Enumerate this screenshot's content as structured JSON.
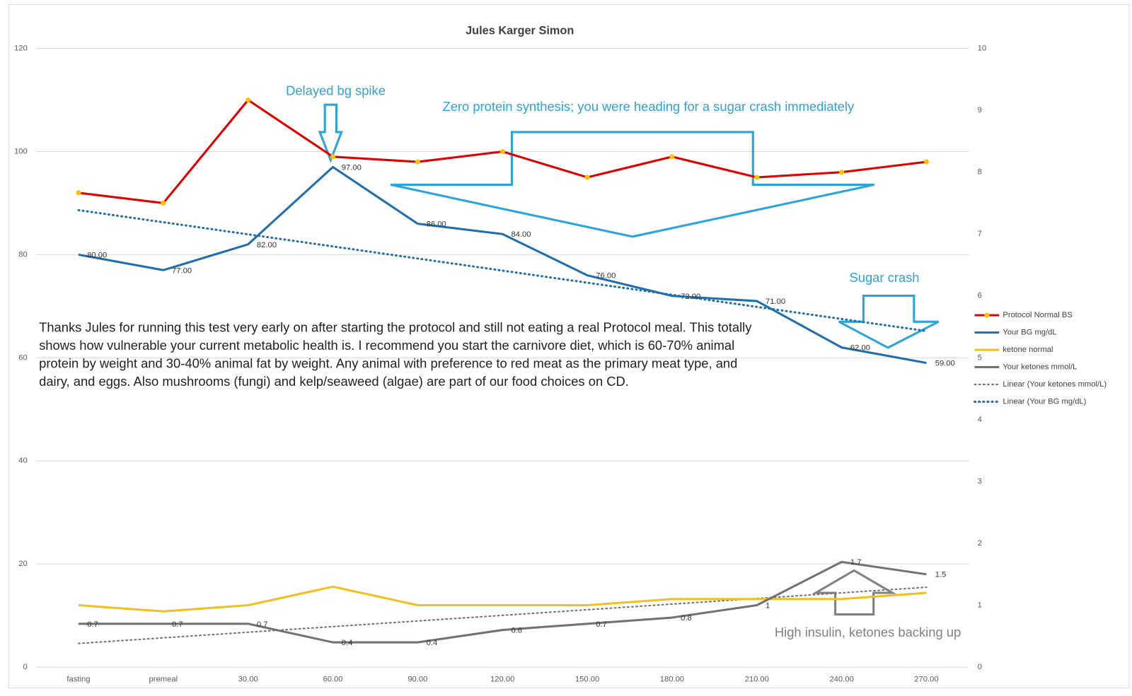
{
  "chart_data": {
    "type": "line",
    "title": "Jules Karger Simon",
    "categories": [
      "fasting",
      "premeal",
      "30.00",
      "60.00",
      "90.00",
      "120.00",
      "150.00",
      "180.00",
      "210.00",
      "240.00",
      "270.00"
    ],
    "ylim": [
      0,
      120
    ],
    "yticks": [
      0,
      20,
      40,
      60,
      80,
      100,
      120
    ],
    "y2lim": [
      0,
      10
    ],
    "y2ticks": [
      0,
      1,
      2,
      3,
      4,
      5,
      6,
      7,
      8,
      9,
      10
    ],
    "grid": true,
    "series": [
      {
        "name": "Protocol Normal BS",
        "color": "#e00000",
        "marker_color": "#ffc000",
        "values": [
          92,
          90,
          110,
          99,
          98,
          100,
          95,
          99,
          95,
          96,
          98
        ]
      },
      {
        "name": "Your BG mg/dL",
        "color": "#1f6fae",
        "values": [
          80,
          77,
          82,
          97,
          86,
          84,
          76,
          72,
          71,
          62,
          59
        ],
        "value_labels": [
          "80.00",
          "77.00",
          "82.00",
          "97.00",
          "86.00",
          "84.00",
          "76.00",
          "72.00",
          "71.00",
          "62.00",
          "59.00"
        ],
        "trendline": {
          "name": "Linear (Your BG mg/dL)",
          "color": "#1f6fae"
        }
      },
      {
        "name": "ketone normal",
        "color": "#f0c020",
        "axis": "y2",
        "values": [
          1.0,
          0.9,
          1.0,
          1.3,
          1.0,
          1.0,
          1.0,
          1.1,
          1.1,
          1.1,
          1.2
        ]
      },
      {
        "name": "Your ketones mmol/L",
        "color": "#767171",
        "axis": "y2",
        "values": [
          0.7,
          0.7,
          0.7,
          0.4,
          0.4,
          0.6,
          0.7,
          0.8,
          1,
          1.7,
          1.5
        ],
        "show_labels": true,
        "trendline": {
          "name": "Linear (Your ketones mmol/L)",
          "color": "#767171"
        }
      }
    ],
    "annotations": [
      "Delayed bg spike",
      "Zero protein synthesis; you were heading for a sugar crash immediately",
      "Sugar crash",
      "High insulin, ketones backing up",
      "Thanks Jules for running this test very early on after starting the protocol and still not eating a real Protocol meal. This totally shows how vulnerable your current metabolic health is. I recommend you start the carnivore diet, which is 60-70% animal protein by weight and 30-40% animal fat by weight. Any animal with preference to red meat as the primary meat type, and dairy, and eggs. Also mushrooms (fungi) and kelp/seaweed (algae) are part of our food choices on CD."
    ]
  }
}
